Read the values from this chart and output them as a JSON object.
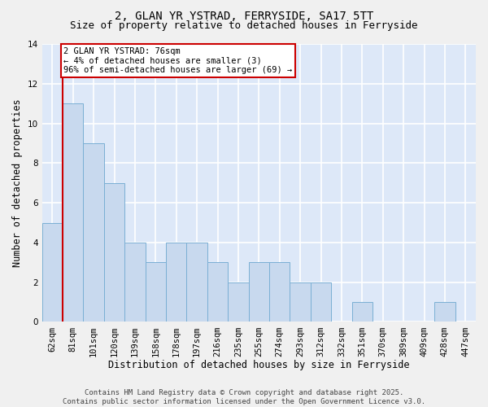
{
  "title": "2, GLAN YR YSTRAD, FERRYSIDE, SA17 5TT",
  "subtitle": "Size of property relative to detached houses in Ferryside",
  "xlabel": "Distribution of detached houses by size in Ferryside",
  "ylabel": "Number of detached properties",
  "categories": [
    "62sqm",
    "81sqm",
    "101sqm",
    "120sqm",
    "139sqm",
    "158sqm",
    "178sqm",
    "197sqm",
    "216sqm",
    "235sqm",
    "255sqm",
    "274sqm",
    "293sqm",
    "312sqm",
    "332sqm",
    "351sqm",
    "370sqm",
    "389sqm",
    "409sqm",
    "428sqm",
    "447sqm"
  ],
  "values": [
    5,
    11,
    9,
    7,
    4,
    3,
    4,
    4,
    3,
    2,
    3,
    3,
    2,
    2,
    0,
    1,
    0,
    0,
    0,
    1,
    0
  ],
  "bar_color": "#c8d9ee",
  "bar_edge_color": "#7aafd4",
  "vline_color": "#cc0000",
  "annotation_text": "2 GLAN YR YSTRAD: 76sqm\n← 4% of detached houses are smaller (3)\n96% of semi-detached houses are larger (69) →",
  "annotation_box_color": "#ffffff",
  "annotation_box_edge_color": "#cc0000",
  "ylim": [
    0,
    14
  ],
  "yticks": [
    0,
    2,
    4,
    6,
    8,
    10,
    12,
    14
  ],
  "background_color": "#dde8f8",
  "plot_bg_color": "#dde8f8",
  "figure_bg_color": "#f0f0f0",
  "grid_color": "#ffffff",
  "footer": "Contains HM Land Registry data © Crown copyright and database right 2025.\nContains public sector information licensed under the Open Government Licence v3.0.",
  "title_fontsize": 10,
  "subtitle_fontsize": 9,
  "axis_label_fontsize": 8.5,
  "tick_fontsize": 7.5,
  "annotation_fontsize": 7.5,
  "footer_fontsize": 6.5
}
